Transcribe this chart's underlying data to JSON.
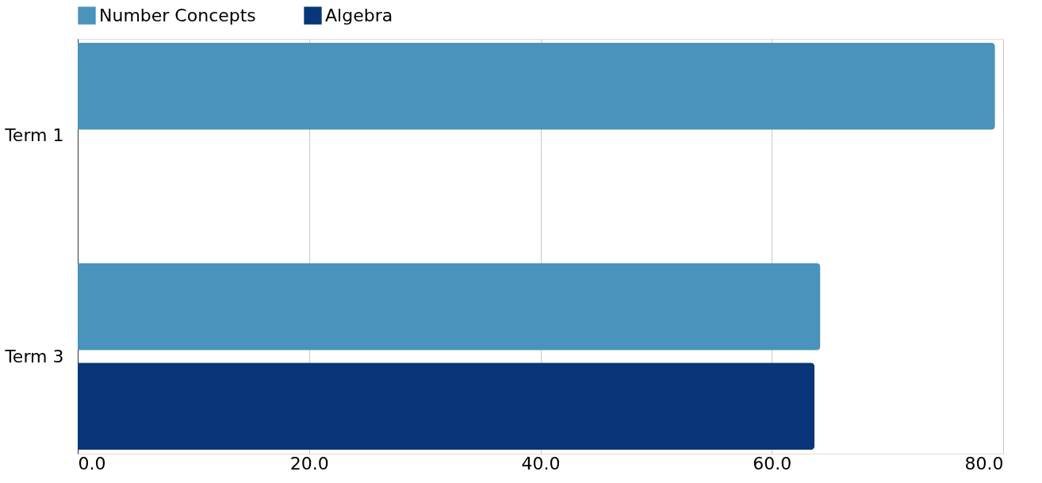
{
  "chart_data": {
    "type": "bar",
    "orientation": "horizontal",
    "categories": [
      "Term 1",
      "Term 3"
    ],
    "series": [
      {
        "name": "Number Concepts",
        "color": "#4a93bc",
        "values": [
          79.3,
          64.2
        ]
      },
      {
        "name": "Algebra",
        "color": "#083678",
        "values": [
          null,
          63.7
        ]
      }
    ],
    "xlim": [
      0,
      80
    ],
    "xticks": [
      {
        "value": 0,
        "label": "0.0"
      },
      {
        "value": 20,
        "label": "20.0"
      },
      {
        "value": 40,
        "label": "40.0"
      },
      {
        "value": 60,
        "label": "60.0"
      },
      {
        "value": 80,
        "label": "80.0"
      }
    ],
    "grid": "x",
    "legend": "top"
  }
}
